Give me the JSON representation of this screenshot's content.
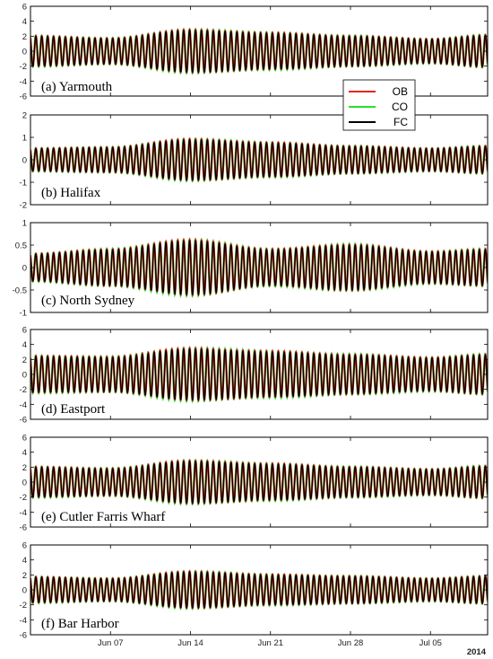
{
  "chart_data": {
    "type": "line",
    "year_label": "2014",
    "x_range": [
      "2014-05-31",
      "2014-07-10"
    ],
    "x_ticks": [
      "Jun 07",
      "Jun 14",
      "Jun 21",
      "Jun 28",
      "Jul 05"
    ],
    "legend": {
      "placement": "right, between panels (a) and (b)",
      "entries": [
        {
          "label": "OB",
          "color": "#e8231f"
        },
        {
          "label": "CO",
          "color": "#26e02a"
        },
        {
          "label": "FC",
          "color": "#000000"
        }
      ]
    },
    "tidal_period_hours": 12.42,
    "grid": false,
    "panels": [
      {
        "label": "(a) Yarmouth",
        "ylim": [
          -6,
          6
        ],
        "yticks": [
          -6,
          -4,
          -2,
          0,
          2,
          4,
          6
        ],
        "tick_labels": [
          "-6",
          "-4",
          "-2",
          "0",
          "2",
          "4",
          "6"
        ],
        "envelope": [
          {
            "date": "2014-05-31",
            "amp": 2.0
          },
          {
            "date": "2014-06-07",
            "amp": 1.7
          },
          {
            "date": "2014-06-14",
            "amp": 2.8
          },
          {
            "date": "2014-06-21",
            "amp": 2.4
          },
          {
            "date": "2014-06-28",
            "amp": 2.0
          },
          {
            "date": "2014-07-05",
            "amp": 1.6
          },
          {
            "date": "2014-07-10",
            "amp": 2.1
          }
        ]
      },
      {
        "label": "(b) Halifax",
        "ylim": [
          -2,
          2
        ],
        "yticks": [
          -2,
          -1,
          0,
          1,
          2
        ],
        "tick_labels": [
          "-2",
          "-1",
          "0",
          "1",
          "2"
        ],
        "envelope": [
          {
            "date": "2014-05-31",
            "amp": 0.5
          },
          {
            "date": "2014-06-07",
            "amp": 0.55
          },
          {
            "date": "2014-06-14",
            "amp": 0.9
          },
          {
            "date": "2014-06-21",
            "amp": 0.75
          },
          {
            "date": "2014-06-28",
            "amp": 0.6
          },
          {
            "date": "2014-07-05",
            "amp": 0.5
          },
          {
            "date": "2014-07-10",
            "amp": 0.6
          }
        ]
      },
      {
        "label": "(c) North Sydney",
        "ylim": [
          -1,
          1
        ],
        "yticks": [
          -1,
          -0.5,
          0,
          0.5,
          1
        ],
        "tick_labels": [
          "-1",
          "-0.5",
          "0",
          "0.5",
          "1"
        ],
        "envelope": [
          {
            "date": "2014-05-31",
            "amp": 0.3
          },
          {
            "date": "2014-06-07",
            "amp": 0.4
          },
          {
            "date": "2014-06-14",
            "amp": 0.6
          },
          {
            "date": "2014-06-21",
            "amp": 0.4
          },
          {
            "date": "2014-06-28",
            "amp": 0.5
          },
          {
            "date": "2014-07-05",
            "amp": 0.35
          },
          {
            "date": "2014-07-10",
            "amp": 0.4
          }
        ]
      },
      {
        "label": "(d) Eastport",
        "ylim": [
          -6,
          6
        ],
        "yticks": [
          -6,
          -4,
          -2,
          0,
          2,
          4,
          6
        ],
        "tick_labels": [
          "-6",
          "-4",
          "-2",
          "0",
          "2",
          "4",
          "6"
        ],
        "envelope": [
          {
            "date": "2014-05-31",
            "amp": 2.4
          },
          {
            "date": "2014-06-07",
            "amp": 2.3
          },
          {
            "date": "2014-06-14",
            "amp": 3.4
          },
          {
            "date": "2014-06-21",
            "amp": 3.0
          },
          {
            "date": "2014-06-28",
            "amp": 2.6
          },
          {
            "date": "2014-07-05",
            "amp": 2.2
          },
          {
            "date": "2014-07-10",
            "amp": 2.6
          }
        ]
      },
      {
        "label": "(e) Cutler Farris Wharf",
        "ylim": [
          -6,
          6
        ],
        "yticks": [
          -6,
          -4,
          -2,
          0,
          2,
          4,
          6
        ],
        "tick_labels": [
          "-6",
          "-4",
          "-2",
          "0",
          "2",
          "4",
          "6"
        ],
        "envelope": [
          {
            "date": "2014-05-31",
            "amp": 2.0
          },
          {
            "date": "2014-06-07",
            "amp": 1.8
          },
          {
            "date": "2014-06-14",
            "amp": 2.8
          },
          {
            "date": "2014-06-21",
            "amp": 2.4
          },
          {
            "date": "2014-06-28",
            "amp": 2.0
          },
          {
            "date": "2014-07-05",
            "amp": 1.7
          },
          {
            "date": "2014-07-10",
            "amp": 2.1
          }
        ]
      },
      {
        "label": "(f) Bar Harbor",
        "ylim": [
          -6,
          6
        ],
        "yticks": [
          -6,
          -4,
          -2,
          0,
          2,
          4,
          6
        ],
        "tick_labels": [
          "-6",
          "-4",
          "-2",
          "0",
          "2",
          "4",
          "6"
        ],
        "envelope": [
          {
            "date": "2014-05-31",
            "amp": 1.7
          },
          {
            "date": "2014-06-07",
            "amp": 1.5
          },
          {
            "date": "2014-06-14",
            "amp": 2.4
          },
          {
            "date": "2014-06-21",
            "amp": 2.0
          },
          {
            "date": "2014-06-28",
            "amp": 1.8
          },
          {
            "date": "2014-07-05",
            "amp": 1.5
          },
          {
            "date": "2014-07-10",
            "amp": 1.8
          }
        ]
      }
    ]
  }
}
